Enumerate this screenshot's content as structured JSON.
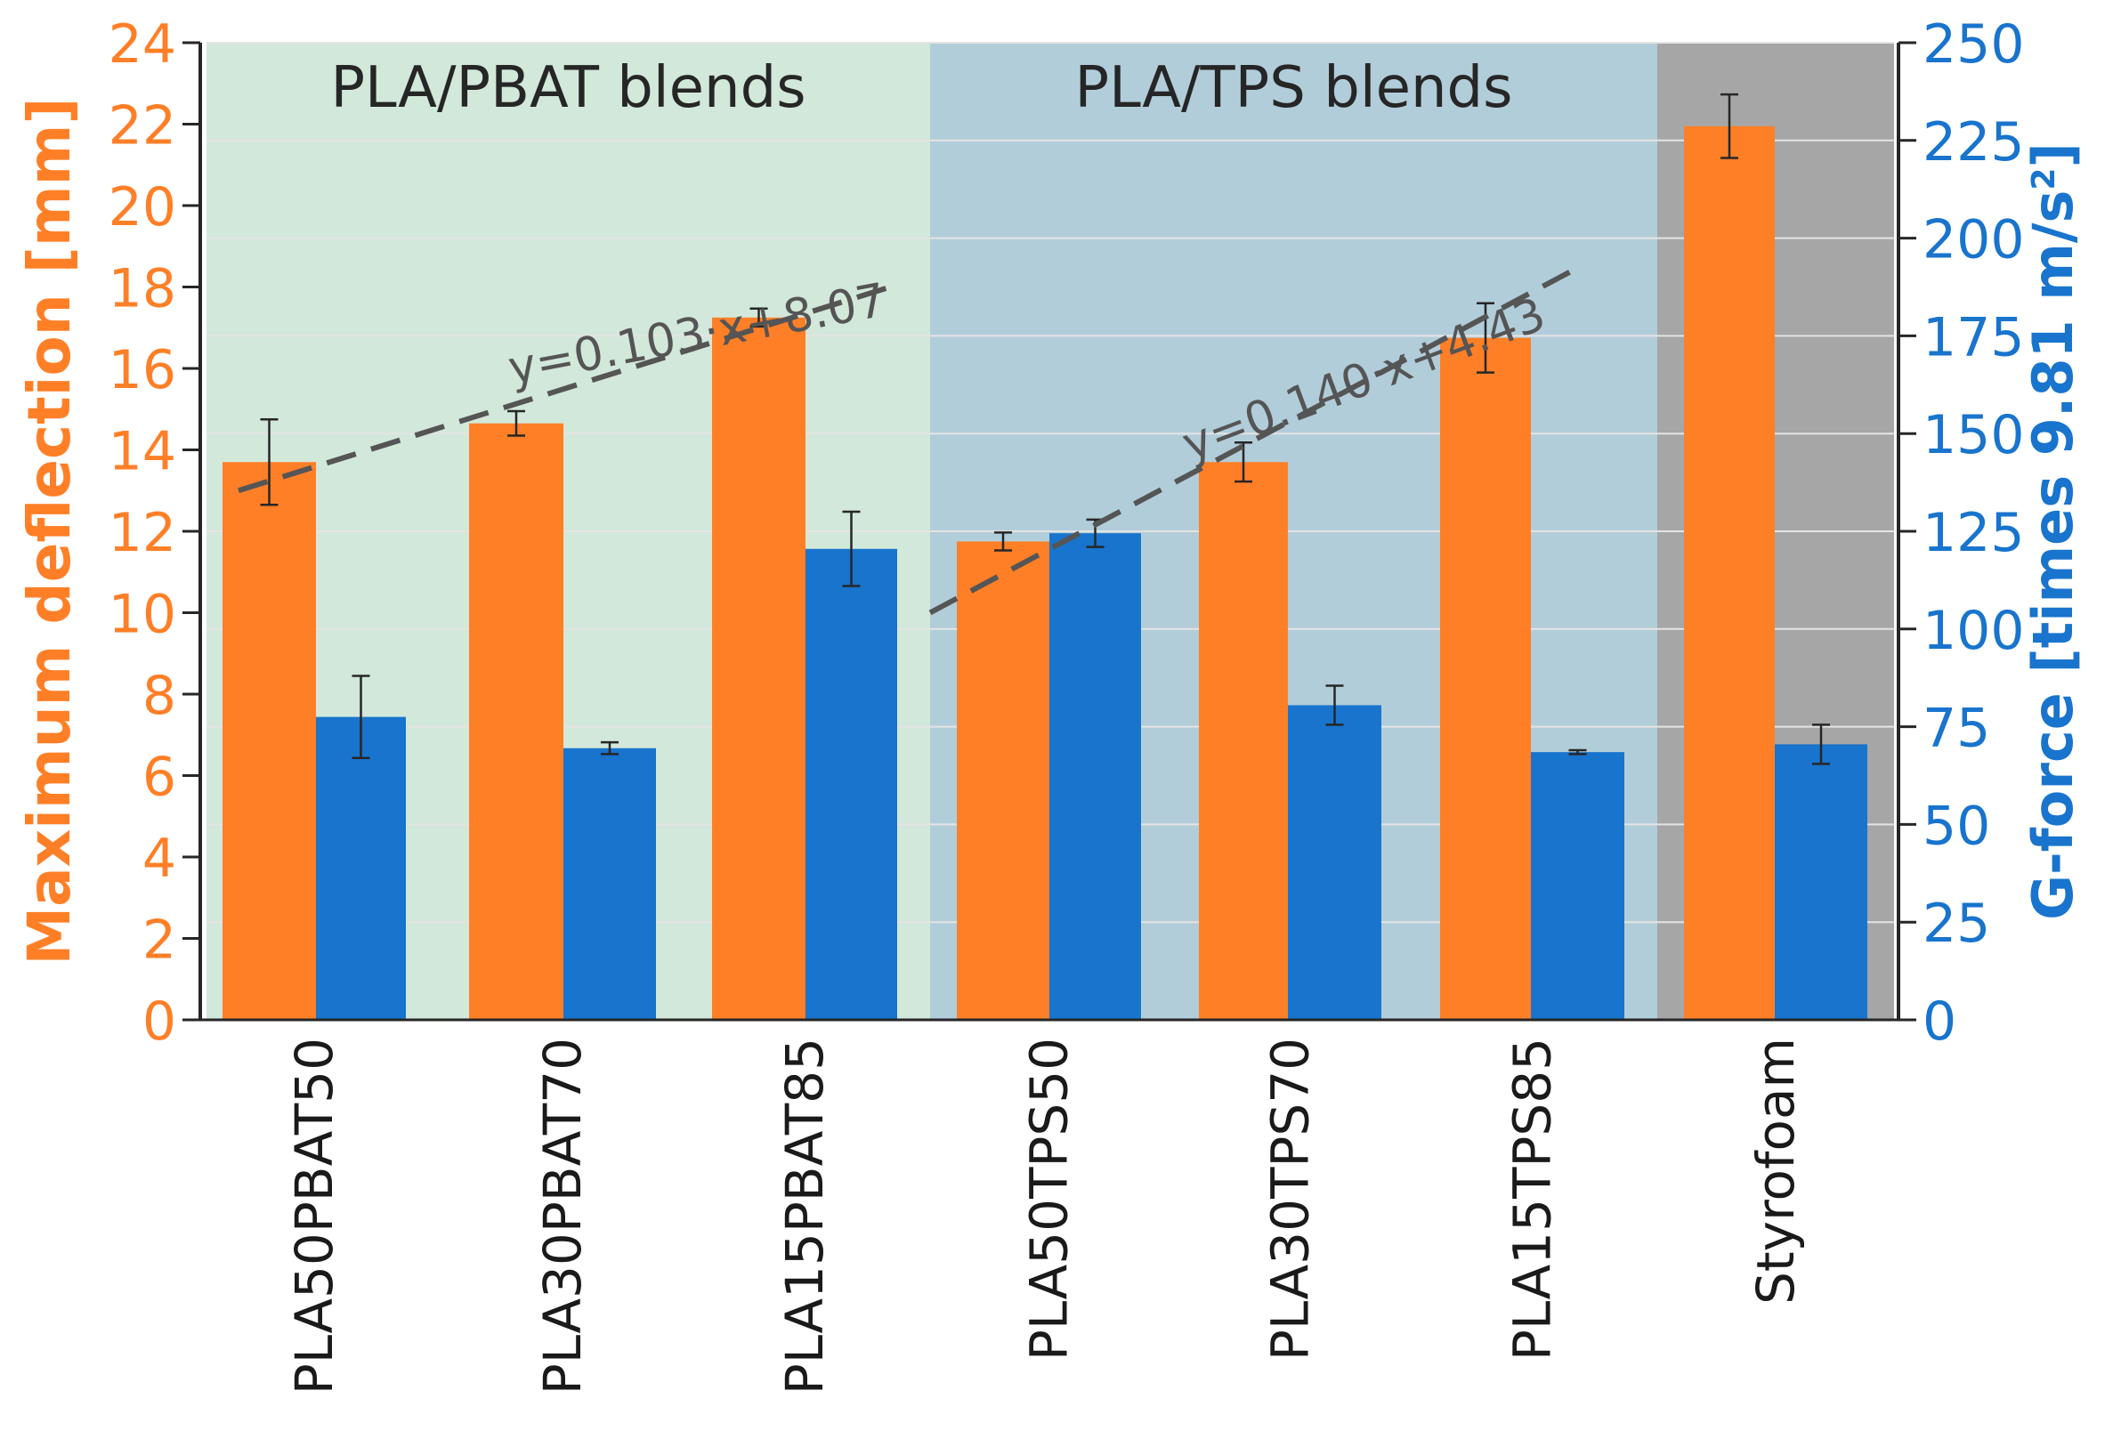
{
  "chart_data": {
    "type": "bar",
    "categories": [
      "PLA50PBAT50",
      "PLA30PBAT70",
      "PLA15PBAT85",
      "PLA50TPS50",
      "PLA30TPS70",
      "PLA15TPS85",
      "Styrofoam"
    ],
    "series": [
      {
        "name": "Maximum deflection [mm]",
        "axis": "left",
        "color": "#FF7F27",
        "values": [
          13.7,
          14.65,
          17.25,
          11.75,
          13.7,
          16.75,
          21.95
        ],
        "errors": [
          1.05,
          0.3,
          0.22,
          0.22,
          0.48,
          0.85,
          0.78
        ]
      },
      {
        "name": "G-force [times 9.81 m/s2]",
        "axis": "right",
        "color": "#1874CD",
        "values": [
          77.5,
          69.5,
          120.5,
          124.5,
          80.5,
          68.5,
          70.5
        ],
        "errors": [
          10.5,
          1.5,
          9.5,
          3.5,
          5.0,
          0.5,
          5.0
        ]
      }
    ],
    "groups": [
      {
        "label": "PLA/PBAT blends",
        "color": "#D2E8DA",
        "categories": [
          "PLA50PBAT50",
          "PLA30PBAT70",
          "PLA15PBAT85"
        ]
      },
      {
        "label": "PLA/TPS blends",
        "color": "#B2CDDA",
        "categories": [
          "PLA50TPS50",
          "PLA30TPS70",
          "PLA15TPS85"
        ]
      },
      {
        "label": "",
        "color": "#A6A6A6",
        "categories": [
          "Styrofoam"
        ]
      }
    ],
    "trendlines": [
      {
        "label": "y=0.103·x+8.07",
        "group": 0,
        "y_start": 13.0,
        "y_end": 18.0
      },
      {
        "label": "y=0.140·x+4.43",
        "group": 1,
        "y_start": 10.0,
        "y_end": 18.5
      }
    ],
    "ylabel": "Maximum deflection [mm]",
    "ylabel2_main": "G-force [times 9.81 m/s",
    "ylabel2_sup": "2",
    "ylabel2_end": "]",
    "ylim": [
      0,
      24
    ],
    "y2lim": [
      0,
      250
    ],
    "yticks": [
      0,
      2,
      4,
      6,
      8,
      10,
      12,
      14,
      16,
      18,
      20,
      22,
      24
    ],
    "y2ticks": [
      0,
      25,
      50,
      75,
      100,
      125,
      150,
      175,
      200,
      225,
      250
    ],
    "left_axis_color": "#FF7F27",
    "right_axis_color": "#1874CD",
    "grid": true
  }
}
